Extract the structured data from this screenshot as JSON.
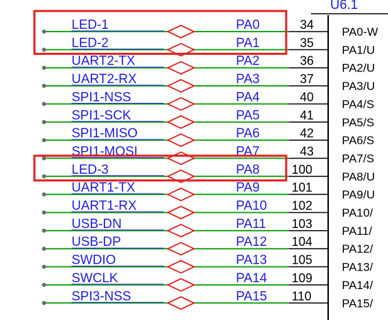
{
  "colors": {
    "label": "#1c1ce0",
    "wire": "#1aa31a",
    "highlight": "#e02020",
    "dot": "#6c6c6c",
    "line": "#000000"
  },
  "chip_title": "U6.1",
  "rows": [
    {
      "net": "LED-1",
      "port": "PA0",
      "pin": "34",
      "chip": "PA0-W",
      "highlighted": true
    },
    {
      "net": "LED-2",
      "port": "PA1",
      "pin": "35",
      "chip": "PA1/U",
      "highlighted": true
    },
    {
      "net": "UART2-TX",
      "port": "PA2",
      "pin": "36",
      "chip": "PA2/U",
      "highlighted": false
    },
    {
      "net": "UART2-RX",
      "port": "PA3",
      "pin": "37",
      "chip": "PA3/U",
      "highlighted": false
    },
    {
      "net": "SPI1-NSS",
      "port": "PA4",
      "pin": "40",
      "chip": "PA4/S",
      "highlighted": false
    },
    {
      "net": "SPI1-SCK",
      "port": "PA5",
      "pin": "41",
      "chip": "PA5/S",
      "highlighted": false
    },
    {
      "net": "SPI1-MISO",
      "port": "PA6",
      "pin": "42",
      "chip": "PA6/S",
      "highlighted": false
    },
    {
      "net": "SPI1-MOSI",
      "port": "PA7",
      "pin": "43",
      "chip": "PA7/S",
      "highlighted": false
    },
    {
      "net": "LED-3",
      "port": "PA8",
      "pin": "100",
      "chip": "PA8/U",
      "highlighted": true
    },
    {
      "net": "UART1-TX",
      "port": "PA9",
      "pin": "101",
      "chip": "PA9/U",
      "highlighted": false
    },
    {
      "net": "UART1-RX",
      "port": "PA10",
      "pin": "102",
      "chip": "PA10/",
      "highlighted": false
    },
    {
      "net": "USB-DN",
      "port": "PA11",
      "pin": "103",
      "chip": "PA11/",
      "highlighted": false
    },
    {
      "net": "USB-DP",
      "port": "PA12",
      "pin": "104",
      "chip": "PA12/",
      "highlighted": false
    },
    {
      "net": "SWDIO",
      "port": "PA13",
      "pin": "105",
      "chip": "PA13/",
      "highlighted": false
    },
    {
      "net": "SWCLK",
      "port": "PA14",
      "pin": "109",
      "chip": "PA14/",
      "highlighted": false
    },
    {
      "net": "SPI3-NSS",
      "port": "PA15",
      "pin": "110",
      "chip": "PA15/",
      "highlighted": false
    }
  ]
}
